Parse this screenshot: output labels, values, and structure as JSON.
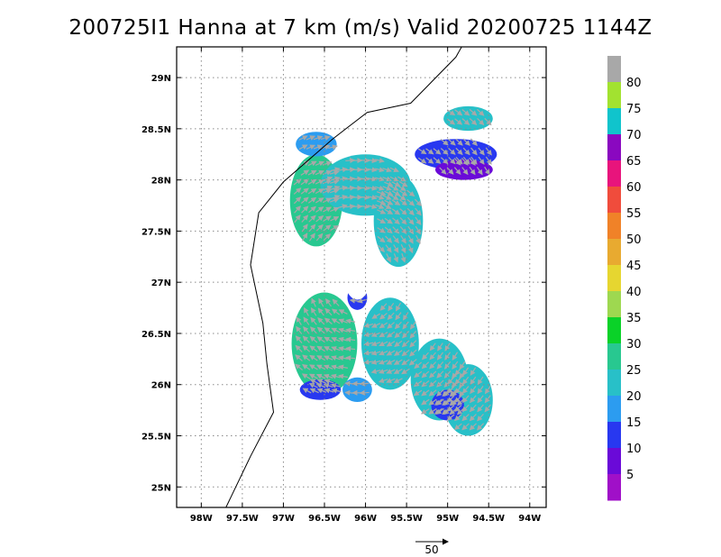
{
  "title": "200725I1 Hanna at 7 km (m/s) Valid 20200725 1144Z",
  "map": {
    "lon_range": [
      -98.3,
      -93.8
    ],
    "lat_range": [
      24.8,
      29.3
    ],
    "lon_ticks": [
      {
        "value": -98.0,
        "label": "98W"
      },
      {
        "value": -97.5,
        "label": "97.5W"
      },
      {
        "value": -97.0,
        "label": "97W"
      },
      {
        "value": -96.5,
        "label": "96.5W"
      },
      {
        "value": -96.0,
        "label": "96W"
      },
      {
        "value": -95.5,
        "label": "95.5W"
      },
      {
        "value": -95.0,
        "label": "95W"
      },
      {
        "value": -94.5,
        "label": "94.5W"
      },
      {
        "value": -94.0,
        "label": "94W"
      }
    ],
    "lat_ticks": [
      {
        "value": 29.0,
        "label": "29N"
      },
      {
        "value": 28.5,
        "label": "28.5N"
      },
      {
        "value": 28.0,
        "label": "28N"
      },
      {
        "value": 27.5,
        "label": "27.5N"
      },
      {
        "value": 27.0,
        "label": "27N"
      },
      {
        "value": 26.5,
        "label": "26.5N"
      },
      {
        "value": 26.0,
        "label": "26N"
      },
      {
        "value": 25.5,
        "label": "25.5N"
      },
      {
        "value": 25.0,
        "label": "25N"
      }
    ],
    "grid": true,
    "coastline": [
      [
        -94.83,
        29.3
      ],
      [
        -94.9,
        29.2
      ],
      [
        -95.45,
        28.75
      ],
      [
        -95.98,
        28.66
      ],
      [
        -96.4,
        28.4
      ],
      [
        -97.0,
        27.98
      ],
      [
        -97.3,
        27.68
      ],
      [
        -97.4,
        27.17
      ],
      [
        -97.25,
        26.6
      ],
      [
        -97.2,
        26.2
      ],
      [
        -97.12,
        25.73
      ],
      [
        -97.4,
        25.3
      ],
      [
        -97.7,
        24.8
      ]
    ],
    "eye_center": [
      -96.1,
      27.05
    ],
    "reference_vector": {
      "label": "50",
      "speed": 50
    },
    "colors": {
      "vector": "#a8a8a8",
      "coast": "#000000",
      "grid": "#8a8a8a"
    }
  },
  "colorbar": {
    "labels": [
      "5",
      "10",
      "15",
      "20",
      "25",
      "30",
      "35",
      "40",
      "45",
      "50",
      "55",
      "60",
      "65",
      "70",
      "75",
      "80"
    ],
    "colors": [
      "#a010c8",
      "#6a0ad8",
      "#2838f0",
      "#2c9cf0",
      "#28c0c8",
      "#28c890",
      "#0ad228",
      "#9ed850",
      "#e6d630",
      "#e8aa30",
      "#f08228",
      "#f04c3c",
      "#e8147c",
      "#8a08c0",
      "#10c4cc",
      "#a2e230",
      "#a8a8a8"
    ]
  },
  "patches": [
    {
      "lon": -96.6,
      "lat": 27.8,
      "rx": 0.32,
      "ry": 0.45,
      "color": "#28c890"
    },
    {
      "lon": -96.0,
      "lat": 27.95,
      "rx": 0.55,
      "ry": 0.3,
      "color": "#28c0c8"
    },
    {
      "lon": -95.6,
      "lat": 27.6,
      "rx": 0.3,
      "ry": 0.45,
      "color": "#28c0c8"
    },
    {
      "lon": -96.5,
      "lat": 26.4,
      "rx": 0.4,
      "ry": 0.5,
      "color": "#28c890"
    },
    {
      "lon": -95.7,
      "lat": 26.4,
      "rx": 0.35,
      "ry": 0.45,
      "color": "#28c0c8"
    },
    {
      "lon": -95.1,
      "lat": 26.05,
      "rx": 0.35,
      "ry": 0.4,
      "color": "#28c0c8"
    },
    {
      "lon": -94.75,
      "lat": 25.85,
      "rx": 0.3,
      "ry": 0.35,
      "color": "#28c0c8"
    },
    {
      "lon": -94.9,
      "lat": 28.25,
      "rx": 0.5,
      "ry": 0.15,
      "color": "#2838f0"
    },
    {
      "lon": -94.8,
      "lat": 28.1,
      "rx": 0.35,
      "ry": 0.1,
      "color": "#6a0ad8"
    },
    {
      "lon": -94.75,
      "lat": 28.6,
      "rx": 0.3,
      "ry": 0.12,
      "color": "#28c0c8"
    },
    {
      "lon": -96.55,
      "lat": 25.95,
      "rx": 0.25,
      "ry": 0.1,
      "color": "#2838f0"
    },
    {
      "lon": -95.0,
      "lat": 25.8,
      "rx": 0.2,
      "ry": 0.15,
      "color": "#2838f0"
    },
    {
      "lon": -96.1,
      "lat": 26.85,
      "rx": 0.12,
      "ry": 0.12,
      "color": "#2838f0"
    },
    {
      "lon": -96.6,
      "lat": 28.35,
      "rx": 0.25,
      "ry": 0.12,
      "color": "#2c9cf0"
    },
    {
      "lon": -96.1,
      "lat": 25.95,
      "rx": 0.18,
      "ry": 0.12,
      "color": "#2c9cf0"
    }
  ]
}
